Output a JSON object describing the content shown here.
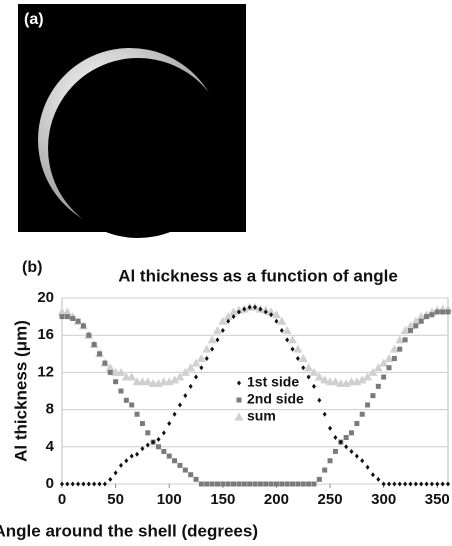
{
  "image_panel": {
    "label": "(a)"
  },
  "chart_data": {
    "type": "scatter",
    "panel_label": "(b)",
    "title": "Al thickness as a function of angle",
    "x_label": "Angle around the shell (degrees)",
    "y_label": "Al thickness (μm)",
    "x": [
      0,
      5,
      10,
      15,
      20,
      25,
      30,
      35,
      40,
      45,
      50,
      55,
      60,
      65,
      70,
      75,
      80,
      85,
      90,
      95,
      100,
      105,
      110,
      115,
      120,
      125,
      130,
      135,
      140,
      145,
      150,
      155,
      160,
      165,
      170,
      175,
      180,
      185,
      190,
      195,
      200,
      205,
      210,
      215,
      220,
      225,
      230,
      235,
      240,
      245,
      250,
      255,
      260,
      265,
      270,
      275,
      280,
      285,
      290,
      295,
      300,
      305,
      310,
      315,
      320,
      325,
      330,
      335,
      340,
      345,
      350,
      355,
      360
    ],
    "series": [
      {
        "name": "1st side",
        "color": "#111111",
        "marker": "diamond",
        "values": [
          0,
          0,
          0,
          0,
          0,
          0,
          0,
          0,
          0,
          0.5,
          1.2,
          2,
          2.5,
          3,
          3.2,
          3.8,
          4.2,
          4.5,
          4.8,
          5.5,
          6.5,
          7.5,
          8.5,
          9.5,
          10.5,
          11.5,
          12.5,
          13.5,
          14.5,
          15.5,
          16.5,
          17.5,
          18,
          18.5,
          18.8,
          19,
          19,
          18.8,
          18.5,
          18.2,
          17.5,
          16.5,
          15.5,
          14.5,
          13.5,
          12.5,
          11.5,
          10.5,
          9,
          7.5,
          6,
          5,
          4.5,
          4,
          3.5,
          3,
          2.5,
          1.8,
          1,
          0.5,
          0,
          0,
          0,
          0,
          0,
          0,
          0,
          0,
          0,
          0,
          0,
          0,
          0
        ]
      },
      {
        "name": "2nd side",
        "color": "#7a7a7a",
        "marker": "square",
        "values": [
          18,
          18,
          17.8,
          17.5,
          17,
          16,
          15,
          14,
          13,
          12,
          11,
          10,
          9,
          8.5,
          7.5,
          6.5,
          5.5,
          4.5,
          4,
          3.5,
          3,
          2.5,
          2,
          1.5,
          1,
          0.5,
          0,
          0,
          0,
          0,
          0,
          0,
          0,
          0,
          0,
          0,
          0,
          0,
          0,
          0,
          0,
          0,
          0,
          0,
          0,
          0,
          0,
          0,
          0.5,
          1.5,
          2.5,
          3.5,
          4.5,
          5,
          5.5,
          6.5,
          7.5,
          8.5,
          9.5,
          10.5,
          11.5,
          12.5,
          13.5,
          14.5,
          15.5,
          16.5,
          17,
          17.5,
          18,
          18.2,
          18.5,
          18.5,
          18.5
        ]
      },
      {
        "name": "sum",
        "color": "#d0d0d0",
        "marker": "triangle",
        "values": [
          18.5,
          18.5,
          18,
          17.5,
          17,
          16,
          15,
          14,
          13,
          12.5,
          12,
          12,
          11.5,
          11.5,
          11,
          11,
          11,
          10.8,
          10.8,
          11,
          11,
          11.2,
          11.5,
          12,
          12.5,
          13,
          13.5,
          14.5,
          15.5,
          16.5,
          17.5,
          18,
          18.5,
          18.7,
          18.8,
          19,
          19,
          18.8,
          18.7,
          18.5,
          18.2,
          17.5,
          16.5,
          15.5,
          14.5,
          13.5,
          12.5,
          12,
          11.5,
          11.2,
          11,
          11,
          10.8,
          10.8,
          11,
          11,
          11.2,
          11.5,
          12,
          12.5,
          13,
          13.5,
          14.5,
          15.5,
          16.5,
          17,
          17.5,
          18,
          18.2,
          18.5,
          18.7,
          18.8,
          18.8
        ]
      }
    ],
    "xlim": [
      0,
      360
    ],
    "xticks": [
      0,
      50,
      100,
      150,
      200,
      250,
      300,
      350
    ],
    "ylim": [
      0,
      20
    ],
    "yticks": [
      0,
      4,
      8,
      12,
      16,
      20
    ],
    "grid": true,
    "legend": "center"
  }
}
